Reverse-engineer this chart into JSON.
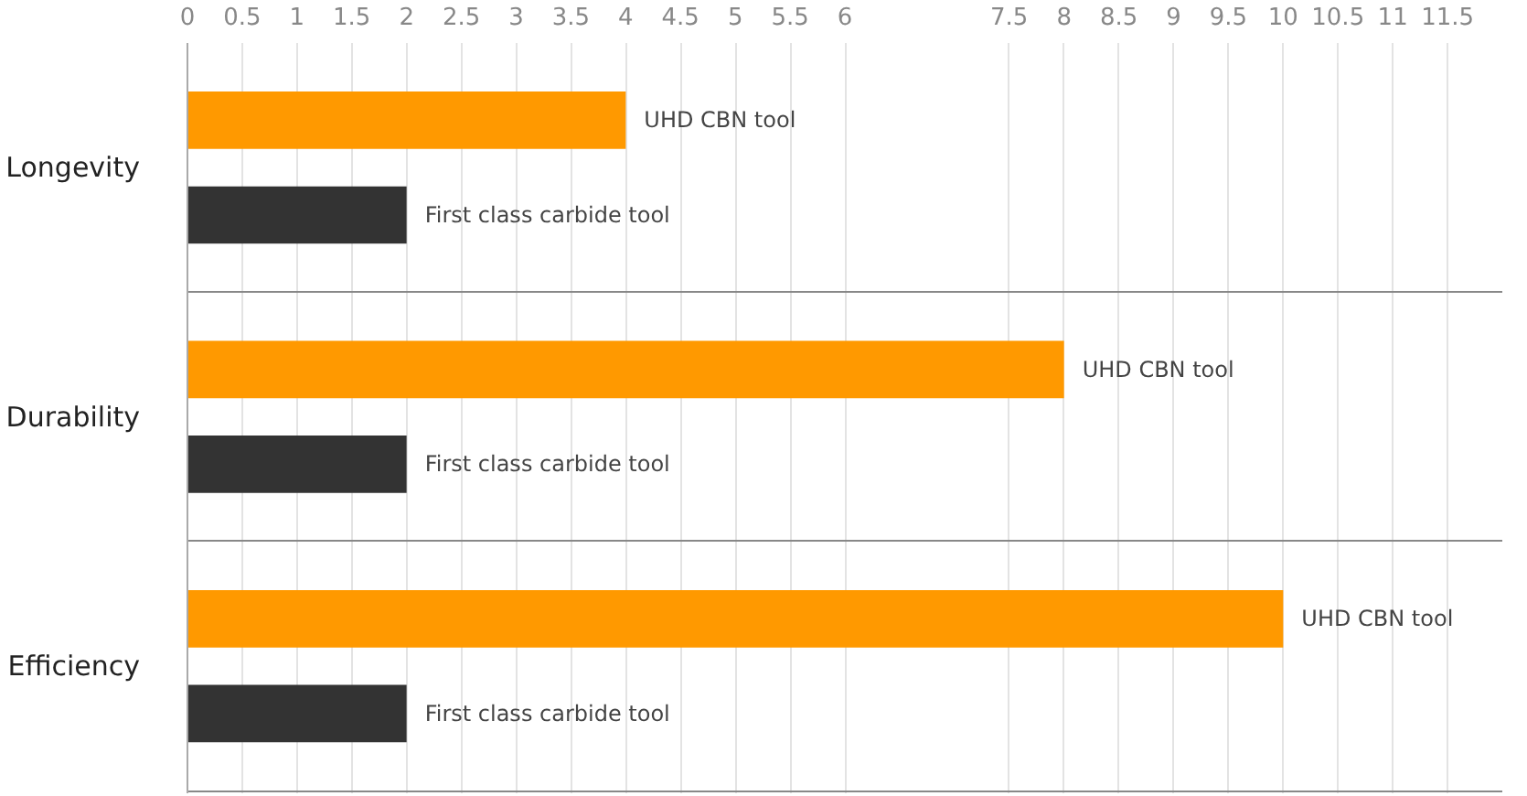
{
  "chart_data": {
    "type": "bar",
    "orientation": "horizontal",
    "categories": [
      "Longevity",
      "Durability",
      "Efficiency"
    ],
    "series": [
      {
        "name": "UHD CBN tool",
        "color": "#ff9900",
        "values": [
          4,
          8,
          10
        ]
      },
      {
        "name": "First class carbide tool",
        "color": "#333333",
        "values": [
          2,
          2,
          2
        ]
      }
    ],
    "xlim": [
      0,
      12
    ],
    "xticks": [
      0,
      0.5,
      1,
      1.5,
      2,
      2.5,
      3,
      3.5,
      4,
      4.5,
      5,
      5.5,
      6,
      7.5,
      8,
      8.5,
      9,
      9.5,
      10,
      10.5,
      11,
      11.5
    ],
    "grid": true
  }
}
